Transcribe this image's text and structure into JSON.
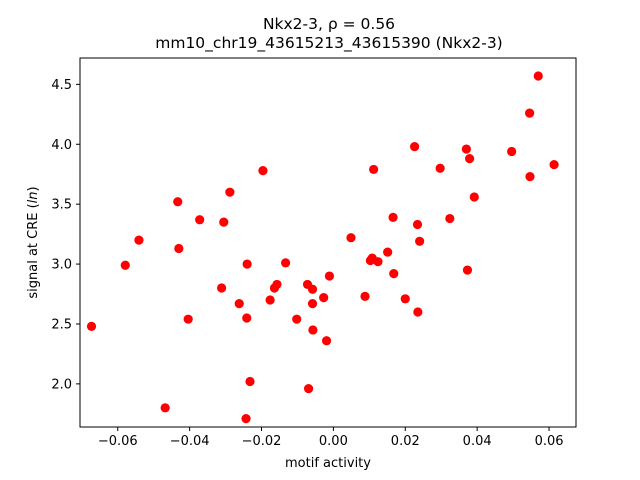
{
  "chart_data": {
    "type": "scatter",
    "title_line1": "Nkx2-3, ρ = 0.56",
    "title_line2": "mm10_chr19_43615213_43615390 (Nkx2-3)",
    "xlabel": "motif activity",
    "ylabel": "signal at CRE (ln)",
    "xlim": [
      -0.0705,
      0.0675
    ],
    "ylim": [
      1.64,
      4.72
    ],
    "xticks": [
      -0.06,
      -0.04,
      -0.02,
      0.0,
      0.02,
      0.04,
      0.06
    ],
    "xtick_labels": [
      "−0.06",
      "−0.04",
      "−0.02",
      "0.00",
      "0.02",
      "0.04",
      "0.06"
    ],
    "yticks": [
      2.0,
      2.5,
      3.0,
      3.5,
      4.0,
      4.5
    ],
    "ytick_labels": [
      "2.0",
      "2.5",
      "3.0",
      "3.5",
      "4.0",
      "4.5"
    ],
    "grid": false,
    "legend": false,
    "marker_color": "#ff0000",
    "points": [
      {
        "x": -0.0673,
        "y": 2.48
      },
      {
        "x": -0.0579,
        "y": 2.99
      },
      {
        "x": -0.0541,
        "y": 3.2
      },
      {
        "x": -0.0468,
        "y": 1.8
      },
      {
        "x": -0.0433,
        "y": 3.52
      },
      {
        "x": -0.043,
        "y": 3.13
      },
      {
        "x": -0.0404,
        "y": 2.54
      },
      {
        "x": -0.0372,
        "y": 3.37
      },
      {
        "x": -0.0311,
        "y": 2.8
      },
      {
        "x": -0.0305,
        "y": 3.35
      },
      {
        "x": -0.0288,
        "y": 3.6
      },
      {
        "x": -0.0262,
        "y": 2.67
      },
      {
        "x": -0.0243,
        "y": 1.71
      },
      {
        "x": -0.0241,
        "y": 2.55
      },
      {
        "x": -0.024,
        "y": 3.0
      },
      {
        "x": -0.0232,
        "y": 2.02
      },
      {
        "x": -0.0196,
        "y": 3.78
      },
      {
        "x": -0.0176,
        "y": 2.7
      },
      {
        "x": -0.0164,
        "y": 2.8
      },
      {
        "x": -0.0157,
        "y": 2.83
      },
      {
        "x": -0.0133,
        "y": 3.01
      },
      {
        "x": -0.0102,
        "y": 2.54
      },
      {
        "x": -0.0072,
        "y": 2.83
      },
      {
        "x": -0.0069,
        "y": 1.96
      },
      {
        "x": -0.0058,
        "y": 2.79
      },
      {
        "x": -0.0058,
        "y": 2.67
      },
      {
        "x": -0.0057,
        "y": 2.45
      },
      {
        "x": -0.0027,
        "y": 2.72
      },
      {
        "x": -0.0019,
        "y": 2.36
      },
      {
        "x": -0.0011,
        "y": 2.9
      },
      {
        "x": 0.0049,
        "y": 3.22
      },
      {
        "x": 0.0088,
        "y": 2.73
      },
      {
        "x": 0.0103,
        "y": 3.03
      },
      {
        "x": 0.0108,
        "y": 3.05
      },
      {
        "x": 0.0112,
        "y": 3.79
      },
      {
        "x": 0.0124,
        "y": 3.02
      },
      {
        "x": 0.0151,
        "y": 3.1
      },
      {
        "x": 0.0166,
        "y": 3.39
      },
      {
        "x": 0.0168,
        "y": 2.92
      },
      {
        "x": 0.02,
        "y": 2.71
      },
      {
        "x": 0.0226,
        "y": 3.98
      },
      {
        "x": 0.0234,
        "y": 3.33
      },
      {
        "x": 0.0235,
        "y": 2.6
      },
      {
        "x": 0.024,
        "y": 3.19
      },
      {
        "x": 0.0297,
        "y": 3.8
      },
      {
        "x": 0.0324,
        "y": 3.38
      },
      {
        "x": 0.037,
        "y": 3.96
      },
      {
        "x": 0.0373,
        "y": 2.95
      },
      {
        "x": 0.0379,
        "y": 3.88
      },
      {
        "x": 0.0392,
        "y": 3.56
      },
      {
        "x": 0.0496,
        "y": 3.94
      },
      {
        "x": 0.0546,
        "y": 4.26
      },
      {
        "x": 0.0547,
        "y": 3.73
      },
      {
        "x": 0.057,
        "y": 4.57
      },
      {
        "x": 0.0614,
        "y": 3.83
      }
    ]
  }
}
